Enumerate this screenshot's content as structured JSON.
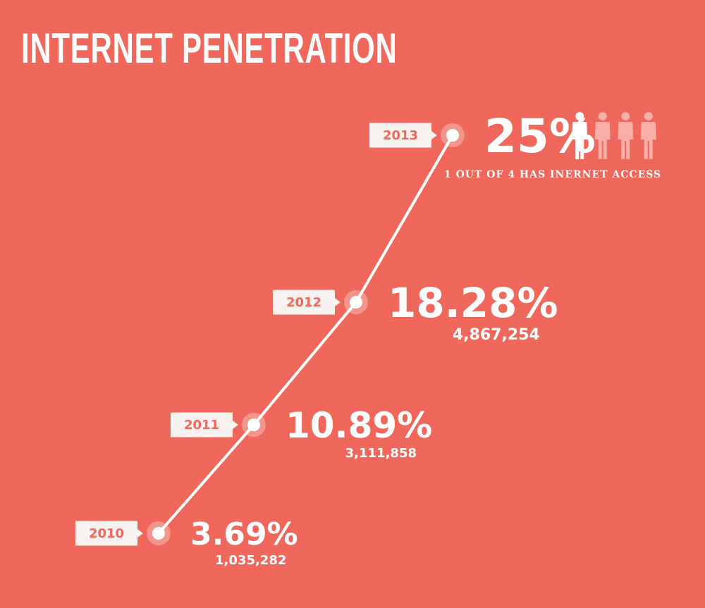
{
  "title": "INTERNET PENETRATION",
  "chart_data": {
    "type": "line",
    "title": "INTERNET PENETRATION",
    "x": [
      "2010",
      "2011",
      "2012",
      "2013"
    ],
    "values": [
      3.69,
      10.89,
      18.28,
      25
    ],
    "value_labels": [
      "3.69%",
      "10.89%",
      "18.28%",
      "25%"
    ],
    "sub_labels": [
      "1,035,282",
      "3,111,858",
      "4,867,254",
      "1 OUT OF 4 HAS INERNET ACCESS"
    ],
    "ylim": [
      0,
      25
    ],
    "grid": false,
    "legend": "none"
  },
  "people_icons": {
    "total": 4,
    "highlighted": 1
  },
  "colors": {
    "background": "#F0675B",
    "line": "#FFFFFF",
    "tag_text": "#F0675B",
    "tag_bg": "#F7F2F0",
    "person_active": "#FFFFFF",
    "person_inactive": "#F7AFA6"
  }
}
